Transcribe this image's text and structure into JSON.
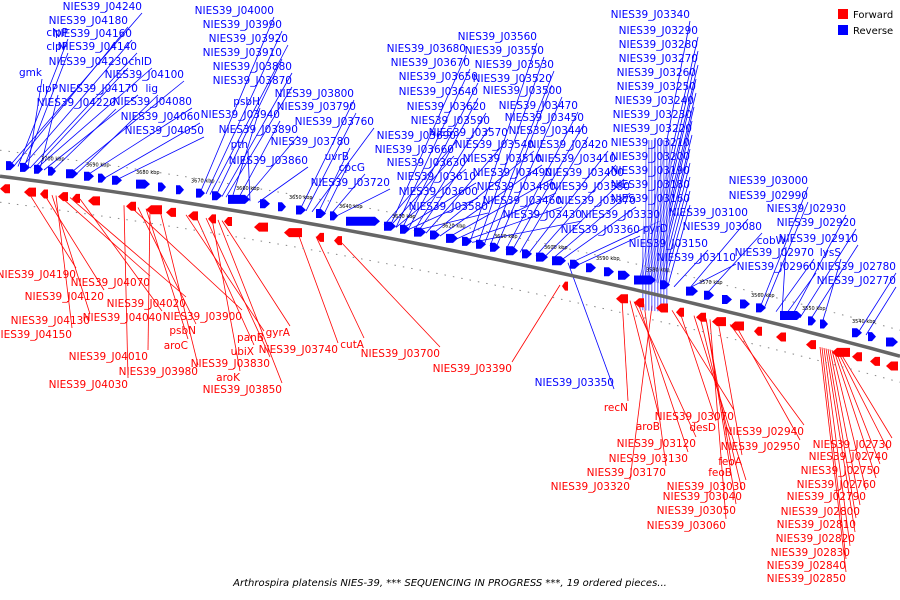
{
  "legend": [
    {
      "label": "Forward",
      "color": "#ff0000"
    },
    {
      "label": "Reverse",
      "color": "#0000ff"
    }
  ],
  "caption": "Arthrospira platensis NIES-39, *** SEQUENCING IN PROGRESS ***, 19 ordered pieces...",
  "ticks": [
    "3700 kbp",
    "3690 kbp",
    "3680 kbp",
    "3670 kbp",
    "3660 kbp",
    "3650 kbp",
    "3640 kbp",
    "3630 kbp",
    "3620 kbp",
    "3610 kbp",
    "3600 kbp",
    "3590 kbp",
    "3580 kbp",
    "3570 kbp",
    "3560 kbp",
    "3550 kbp",
    "3540 kbp"
  ],
  "reverse_labels": [
    "NIES39_J04240",
    "NIES39_J04180",
    "clpP",
    "NIES39_J04160",
    "clpP",
    "NIES39_J04140",
    "gmk",
    "NIES39_J04230",
    "chlD",
    "clpP",
    "NIES39_J04170",
    "NIES39_J04100",
    "lig",
    "NIES39_J04220",
    "NIES39_J04080",
    "NIES39_J04060",
    "NIES39_J04050",
    "NIES39_J04000",
    "NIES39_J03990",
    "NIES39_J03920",
    "NIES39_J03910",
    "NIES39_J03880",
    "NIES39_J03870",
    "NIES39_J03800",
    "psbH",
    "NIES39_J03790",
    "NIES39_J03940",
    "NIES39_J03760",
    "NIES39_J03890",
    "NIES39_J03780",
    "pth",
    "uvrB",
    "NIES39_J03860",
    "cpcG",
    "NIES39_J03720",
    "NIES39_J03560",
    "NIES39_J03680",
    "NIES39_J03550",
    "NIES39_J03670",
    "NIES39_J03530",
    "NIES39_J03650",
    "NIES39_J03520",
    "NIES39_J03640",
    "NIES39_J03500",
    "NIES39_J03620",
    "NIES39_J03470",
    "NIES39_J03590",
    "NIES39_J03450",
    "NIES39_J03690",
    "NIES39_J03570",
    "NIES39_J03440",
    "NIES39_J03660",
    "NIES39_J03540",
    "NIES39_J03420",
    "NIES39_J03630",
    "NIES39_J03510",
    "NIES39_J03410",
    "NIES39_J03610",
    "NIES39_J03490",
    "NIES39_J03400",
    "NIES39_J03600",
    "NIES39_J03480",
    "NIES39_J03380",
    "NIES39_J03580",
    "NIES39_J03460",
    "NIES39_J03370",
    "NIES39_J03430",
    "NIES39_J03330",
    "NIES39_J03360",
    "NIES39_J03340",
    "NIES39_J03290",
    "NIES39_J03280",
    "NIES39_J03270",
    "NIES39_J03260",
    "NIES39_J03250",
    "NIES39_J03240",
    "NIES39_J03230",
    "NIES39_J03220",
    "NIES39_J03210",
    "NIES39_J03200",
    "NIES39_J03190",
    "NIES39_J03180",
    "NIES39_J03160",
    "NIES39_J03100",
    "pyrD",
    "NIES39_J03080",
    "NIES39_J03150",
    "NIES39_J03110",
    "NIES39_J03000",
    "NIES39_J02990",
    "NIES39_J02930",
    "NIES39_J02920",
    "NIES39_J02970",
    "NIES39_J02910",
    "cobW",
    "NIES39_J02960",
    "lysS",
    "NIES39_J02780",
    "NIES39_J02770",
    "NIES39_J03350"
  ],
  "forward_labels": [
    "NIES39_J04190",
    "NIES39_J04070",
    "NIES39_J04120",
    "NIES39_J04020",
    "NIES39_J04130",
    "NIES39_J04040",
    "NIES39_J03900",
    "psbN",
    "NIES39_J04150",
    "panB",
    "aroC",
    "gyrA",
    "NIES39_J04010",
    "ubiX",
    "NIES39_J03740",
    "cutA",
    "NIES39_J03700",
    "NIES39_J03980",
    "NIES39_J03830",
    "aroK",
    "NIES39_J04030",
    "NIES39_J03850",
    "NIES39_J03390",
    "recN",
    "NIES39_J03070",
    "aroB",
    "desD",
    "NIES39_J03120",
    "NIES39_J02940",
    "NIES39_J03130",
    "NIES39_J02950",
    "feoA",
    "NIES39_J03170",
    "feoB",
    "NIES39_J03030",
    "NIES39_J03320",
    "NIES39_J03040",
    "NIES39_J03050",
    "NIES39_J03060",
    "NIES39_J02730",
    "NIES39_J02740",
    "NIES39_J02750",
    "NIES39_J02760",
    "NIES39_J02790",
    "NIES39_J02800",
    "NIES39_J02810",
    "NIES39_J02820",
    "NIES39_J02830",
    "NIES39_J02840",
    "NIES39_J02850"
  ]
}
